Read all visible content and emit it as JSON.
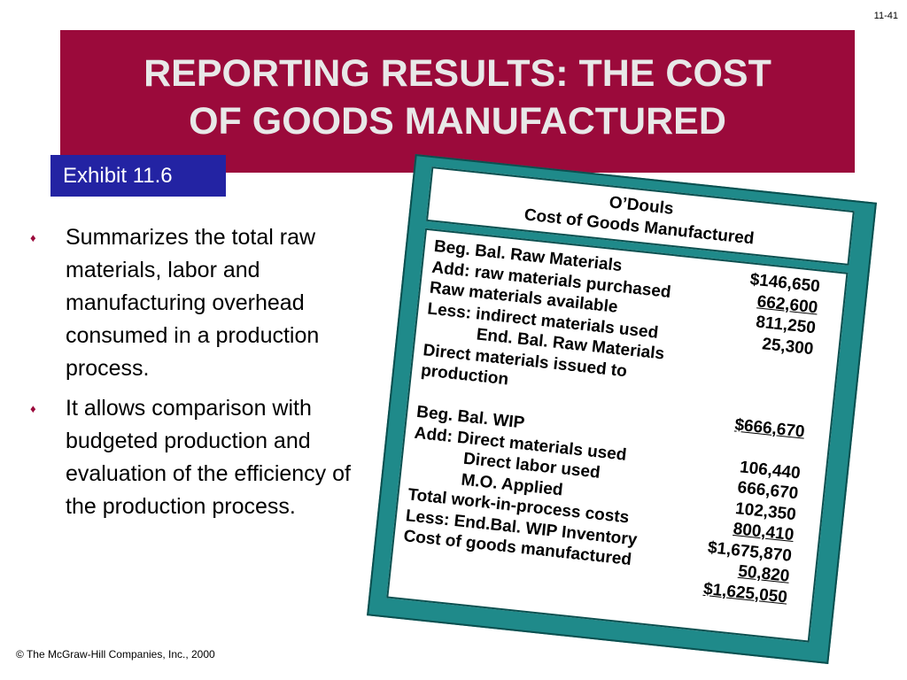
{
  "slide_number": "11-41",
  "title": [
    "REPORTING RESULTS: THE COST",
    "OF GOODS MANUFACTURED"
  ],
  "exhibit": "Exhibit 11.6",
  "bullets": [
    {
      "marker": "♦",
      "text": "Summarizes the total raw materials, labor and manufacturing overhead consumed in a production process."
    },
    {
      "marker": "♦",
      "text": "It allows comparison with budgeted production and evaluation of the efficiency of the production process."
    }
  ],
  "panel": {
    "header": [
      "O’Douls",
      "Cost of Goods Manufactured"
    ],
    "rows": [
      {
        "label": "Beg. Bal. Raw Materials",
        "amount": "$146,650"
      },
      {
        "label": "Add: raw materials purchased",
        "amount": "662,600",
        "underline": true
      },
      {
        "label": "Raw  materials available",
        "amount": "811,250"
      },
      {
        "label": "Less: indirect materials used",
        "amount": "25,300"
      },
      {
        "label": "End. Bal. Raw Materials",
        "indent": true
      },
      {
        "label": "Direct materials issued to"
      },
      {
        "label": "production"
      },
      {
        "label": "",
        "amount": "$666,670",
        "underline": true
      },
      {
        "label": "Beg. Bal. WIP"
      },
      {
        "label": "Add: Direct materials used",
        "amount": "106,440"
      },
      {
        "label": "Direct labor used",
        "indent": true,
        "amount": "666,670"
      },
      {
        "label": "M.O.  Applied",
        "indent": true,
        "amount": "102,350"
      },
      {
        "label": "Total work-in-process costs",
        "amount": "800,410",
        "underline": true
      },
      {
        "label": "Less: End.Bal. WIP Inventory",
        "amount": "$1,675,870"
      },
      {
        "label": "Cost of goods  manufactured",
        "amount": "50,820",
        "underline": true
      },
      {
        "amount": "$1,625,050",
        "underline": true
      }
    ]
  },
  "footer": "© The McGraw-Hill Companies, Inc., 2000"
}
